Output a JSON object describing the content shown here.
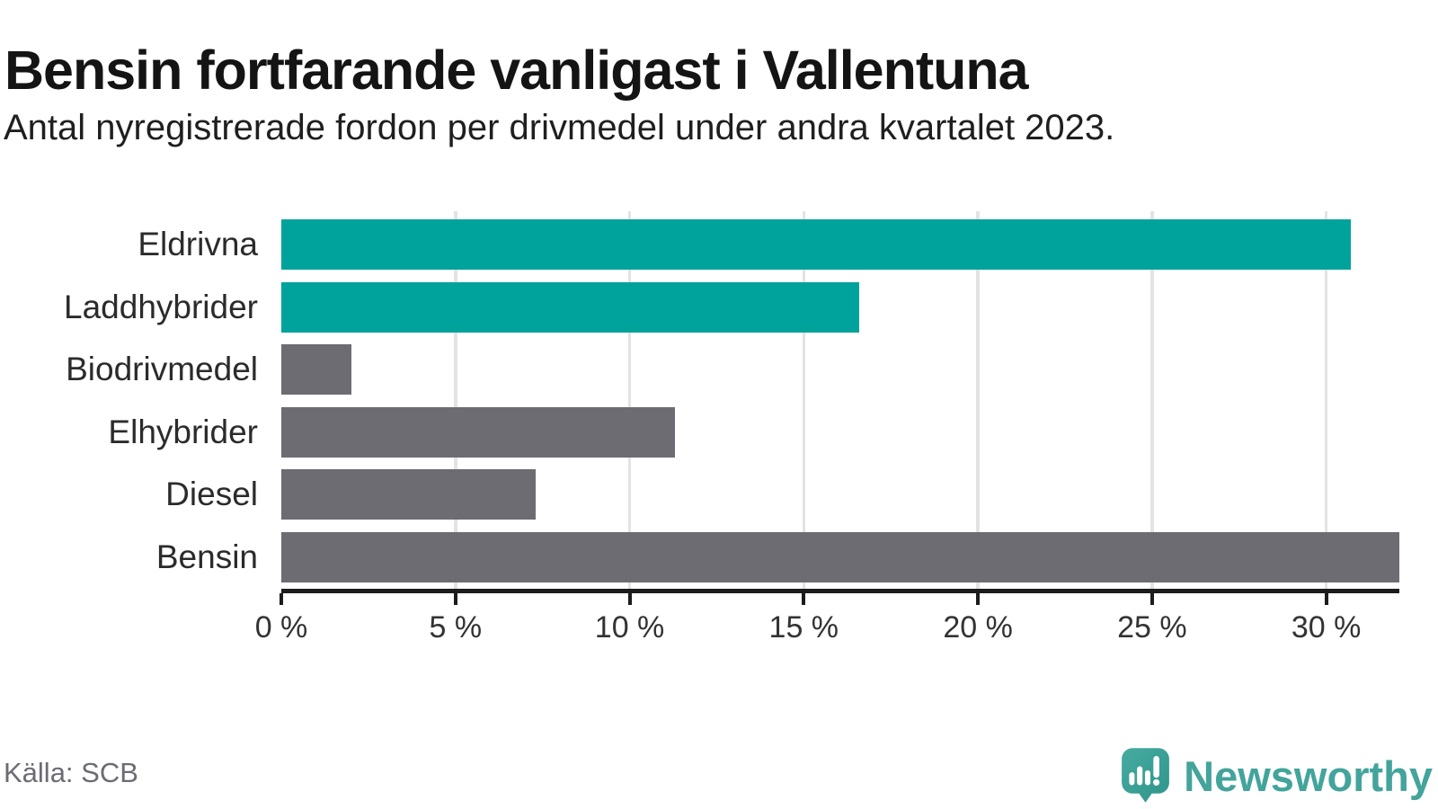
{
  "chart_data": {
    "type": "bar",
    "orientation": "horizontal",
    "title": "Bensin fortfarande vanligast i Vallentuna",
    "subtitle": "Antal nyregistrerade fordon per drivmedel under andra kvartalet 2023.",
    "categories": [
      "Eldrivna",
      "Laddhybrider",
      "Biodrivmedel",
      "Elhybrider",
      "Diesel",
      "Bensin"
    ],
    "values": [
      30.7,
      16.6,
      2.0,
      11.3,
      7.3,
      32.1
    ],
    "unit": "%",
    "bar_colors": [
      "#00a39b",
      "#00a39b",
      "#6c6c72",
      "#6c6c72",
      "#6c6c72",
      "#6c6c72"
    ],
    "xlim": [
      0,
      32.1
    ],
    "xticks": [
      0,
      5,
      10,
      15,
      20,
      25,
      30
    ],
    "tick_suffix": " %",
    "grid": true,
    "legend": "none",
    "xlabel": "",
    "ylabel": ""
  },
  "footer": {
    "source": "Källa: SCB",
    "brand": "Newsworthy"
  },
  "colors": {
    "accent_teal": "#00a39b",
    "bar_gray": "#6c6c72",
    "gridline": "#e3e3e3",
    "axis": "#1c1c1c",
    "logo_teal": "#43a49c"
  }
}
